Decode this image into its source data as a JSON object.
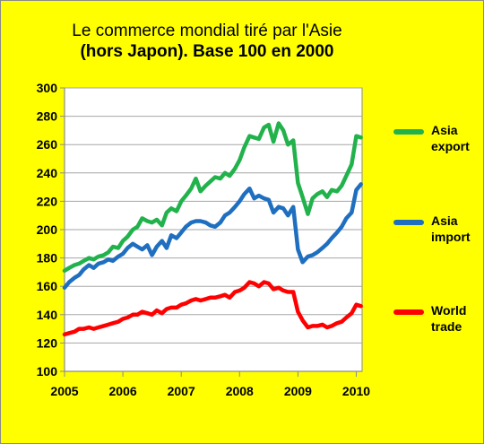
{
  "title_line1": "Le commerce mondial tiré par l'Asie",
  "title_line2": "(hors Japon). Base 100 en 2000",
  "colors": {
    "background": "#ffff00",
    "plot_background": "#ffffff",
    "axis": "#8c8c8c",
    "grid": "#a6a6a6"
  },
  "chart_data": {
    "type": "line",
    "xlabel": "",
    "ylabel": "",
    "xlim": [
      2005,
      2010.1
    ],
    "ylim": [
      100,
      300
    ],
    "x_ticks": [
      "2005",
      "2006",
      "2007",
      "2008",
      "2009",
      "2010"
    ],
    "y_ticks": [
      "100",
      "120",
      "140",
      "160",
      "180",
      "200",
      "220",
      "240",
      "260",
      "280",
      "300"
    ],
    "grid": "horizontal",
    "legend_position": "right",
    "series": [
      {
        "name": "Asia export",
        "label_lines": [
          "Asia",
          "export"
        ],
        "color": "#22b24c",
        "points": [
          [
            2005.0,
            171
          ],
          [
            2005.08,
            173
          ],
          [
            2005.17,
            175
          ],
          [
            2005.25,
            176
          ],
          [
            2005.33,
            178
          ],
          [
            2005.42,
            180
          ],
          [
            2005.5,
            179
          ],
          [
            2005.58,
            181
          ],
          [
            2005.67,
            182
          ],
          [
            2005.75,
            184
          ],
          [
            2005.83,
            188
          ],
          [
            2005.92,
            187
          ],
          [
            2006.0,
            192
          ],
          [
            2006.08,
            195
          ],
          [
            2006.17,
            200
          ],
          [
            2006.25,
            202
          ],
          [
            2006.33,
            208
          ],
          [
            2006.42,
            206
          ],
          [
            2006.5,
            205
          ],
          [
            2006.58,
            207
          ],
          [
            2006.67,
            203
          ],
          [
            2006.75,
            212
          ],
          [
            2006.83,
            215
          ],
          [
            2006.92,
            213
          ],
          [
            2007.0,
            220
          ],
          [
            2007.08,
            224
          ],
          [
            2007.17,
            229
          ],
          [
            2007.25,
            236
          ],
          [
            2007.33,
            227
          ],
          [
            2007.42,
            231
          ],
          [
            2007.5,
            234
          ],
          [
            2007.58,
            237
          ],
          [
            2007.67,
            236
          ],
          [
            2007.75,
            240
          ],
          [
            2007.83,
            238
          ],
          [
            2007.92,
            243
          ],
          [
            2008.0,
            249
          ],
          [
            2008.08,
            258
          ],
          [
            2008.17,
            266
          ],
          [
            2008.25,
            265
          ],
          [
            2008.33,
            264
          ],
          [
            2008.42,
            272
          ],
          [
            2008.5,
            274
          ],
          [
            2008.58,
            262
          ],
          [
            2008.67,
            275
          ],
          [
            2008.75,
            270
          ],
          [
            2008.83,
            260
          ],
          [
            2008.92,
            263
          ],
          [
            2009.0,
            233
          ],
          [
            2009.08,
            223
          ],
          [
            2009.17,
            211
          ],
          [
            2009.25,
            222
          ],
          [
            2009.33,
            225
          ],
          [
            2009.42,
            227
          ],
          [
            2009.5,
            223
          ],
          [
            2009.58,
            228
          ],
          [
            2009.67,
            227
          ],
          [
            2009.75,
            231
          ],
          [
            2009.83,
            238
          ],
          [
            2009.92,
            246
          ],
          [
            2010.0,
            266
          ],
          [
            2010.08,
            265
          ]
        ]
      },
      {
        "name": "Asia import",
        "label_lines": [
          "Asia",
          "import"
        ],
        "color": "#1f6fc0",
        "points": [
          [
            2005.0,
            159
          ],
          [
            2005.08,
            163
          ],
          [
            2005.17,
            166
          ],
          [
            2005.25,
            168
          ],
          [
            2005.33,
            172
          ],
          [
            2005.42,
            175
          ],
          [
            2005.5,
            173
          ],
          [
            2005.58,
            176
          ],
          [
            2005.67,
            177
          ],
          [
            2005.75,
            179
          ],
          [
            2005.83,
            178
          ],
          [
            2005.92,
            181
          ],
          [
            2006.0,
            183
          ],
          [
            2006.08,
            187
          ],
          [
            2006.17,
            190
          ],
          [
            2006.25,
            188
          ],
          [
            2006.33,
            186
          ],
          [
            2006.42,
            189
          ],
          [
            2006.5,
            182
          ],
          [
            2006.58,
            188
          ],
          [
            2006.67,
            192
          ],
          [
            2006.75,
            187
          ],
          [
            2006.83,
            196
          ],
          [
            2006.92,
            194
          ],
          [
            2007.0,
            198
          ],
          [
            2007.08,
            202
          ],
          [
            2007.17,
            205
          ],
          [
            2007.25,
            206
          ],
          [
            2007.33,
            206
          ],
          [
            2007.42,
            205
          ],
          [
            2007.5,
            203
          ],
          [
            2007.58,
            202
          ],
          [
            2007.67,
            205
          ],
          [
            2007.75,
            210
          ],
          [
            2007.83,
            212
          ],
          [
            2007.92,
            216
          ],
          [
            2008.0,
            220
          ],
          [
            2008.08,
            225
          ],
          [
            2008.17,
            229
          ],
          [
            2008.25,
            222
          ],
          [
            2008.33,
            224
          ],
          [
            2008.42,
            222
          ],
          [
            2008.5,
            221
          ],
          [
            2008.58,
            212
          ],
          [
            2008.67,
            216
          ],
          [
            2008.75,
            215
          ],
          [
            2008.83,
            210
          ],
          [
            2008.92,
            216
          ],
          [
            2009.0,
            186
          ],
          [
            2009.08,
            177
          ],
          [
            2009.17,
            181
          ],
          [
            2009.25,
            182
          ],
          [
            2009.33,
            184
          ],
          [
            2009.42,
            187
          ],
          [
            2009.5,
            190
          ],
          [
            2009.58,
            194
          ],
          [
            2009.67,
            198
          ],
          [
            2009.75,
            202
          ],
          [
            2009.83,
            208
          ],
          [
            2009.92,
            212
          ],
          [
            2010.0,
            228
          ],
          [
            2010.08,
            232
          ]
        ]
      },
      {
        "name": "World trade",
        "label_lines": [
          "World",
          "trade"
        ],
        "color": "#ff0000",
        "points": [
          [
            2005.0,
            126
          ],
          [
            2005.08,
            127
          ],
          [
            2005.17,
            128
          ],
          [
            2005.25,
            130
          ],
          [
            2005.33,
            130
          ],
          [
            2005.42,
            131
          ],
          [
            2005.5,
            130
          ],
          [
            2005.58,
            131
          ],
          [
            2005.67,
            132
          ],
          [
            2005.75,
            133
          ],
          [
            2005.83,
            134
          ],
          [
            2005.92,
            135
          ],
          [
            2006.0,
            137
          ],
          [
            2006.08,
            138
          ],
          [
            2006.17,
            140
          ],
          [
            2006.25,
            140
          ],
          [
            2006.33,
            142
          ],
          [
            2006.42,
            141
          ],
          [
            2006.5,
            140
          ],
          [
            2006.58,
            143
          ],
          [
            2006.67,
            141
          ],
          [
            2006.75,
            144
          ],
          [
            2006.83,
            145
          ],
          [
            2006.92,
            145
          ],
          [
            2007.0,
            147
          ],
          [
            2007.08,
            148
          ],
          [
            2007.17,
            150
          ],
          [
            2007.25,
            151
          ],
          [
            2007.33,
            150
          ],
          [
            2007.42,
            151
          ],
          [
            2007.5,
            152
          ],
          [
            2007.58,
            152
          ],
          [
            2007.67,
            153
          ],
          [
            2007.75,
            154
          ],
          [
            2007.83,
            152
          ],
          [
            2007.92,
            156
          ],
          [
            2008.0,
            157
          ],
          [
            2008.08,
            159
          ],
          [
            2008.17,
            163
          ],
          [
            2008.25,
            162
          ],
          [
            2008.33,
            160
          ],
          [
            2008.42,
            163
          ],
          [
            2008.5,
            162
          ],
          [
            2008.58,
            158
          ],
          [
            2008.67,
            159
          ],
          [
            2008.75,
            157
          ],
          [
            2008.83,
            156
          ],
          [
            2008.92,
            156
          ],
          [
            2009.0,
            142
          ],
          [
            2009.08,
            136
          ],
          [
            2009.17,
            131
          ],
          [
            2009.25,
            132
          ],
          [
            2009.33,
            132
          ],
          [
            2009.42,
            133
          ],
          [
            2009.5,
            131
          ],
          [
            2009.58,
            132
          ],
          [
            2009.67,
            134
          ],
          [
            2009.75,
            135
          ],
          [
            2009.83,
            138
          ],
          [
            2009.92,
            141
          ],
          [
            2010.0,
            147
          ],
          [
            2010.08,
            146
          ]
        ]
      }
    ]
  }
}
